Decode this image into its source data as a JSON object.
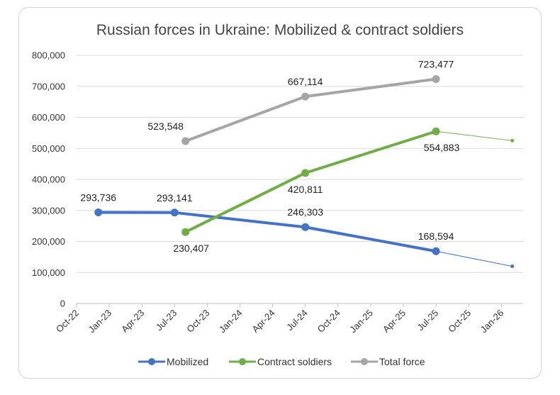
{
  "chart_data": {
    "type": "line",
    "title": "Russian forces in Ukraine: Mobilized & contract soldiers",
    "xlabel": "",
    "ylabel": "",
    "x_ticks": [
      "Oct-22",
      "Jan-23",
      "Apr-23",
      "Jul-23",
      "Oct-23",
      "Jan-24",
      "Apr-24",
      "Jul-24",
      "Oct-24",
      "Jan-25",
      "Apr-25",
      "Jul-25",
      "Oct-25",
      "Jan-26"
    ],
    "y_ticks": [
      "0",
      "100,000",
      "200,000",
      "300,000",
      "400,000",
      "500,000",
      "600,000",
      "700,000",
      "800,000"
    ],
    "ylim": [
      0,
      800000
    ],
    "grid": "horizontal",
    "legend_position": "bottom",
    "series": [
      {
        "name": "Mobilized",
        "color": "#4472c4",
        "points": [
          {
            "x": "2022-12",
            "y": 293736,
            "label": "293,736"
          },
          {
            "x": "2023-07",
            "y": 293141,
            "label": "293,141"
          },
          {
            "x": "2024-07",
            "y": 246303,
            "label": "246,303"
          },
          {
            "x": "2025-07",
            "y": 168594,
            "label": "168,594"
          }
        ],
        "trend": {
          "x": "2026-02",
          "y": 120000
        }
      },
      {
        "name": "Contract soldiers",
        "color": "#70ad47",
        "points": [
          {
            "x": "2023-08",
            "y": 230407,
            "label": "230,407"
          },
          {
            "x": "2024-07",
            "y": 420811,
            "label": "420,811"
          },
          {
            "x": "2025-07",
            "y": 554883,
            "label": "554,883"
          }
        ],
        "trend": {
          "x": "2026-02",
          "y": 525000
        }
      },
      {
        "name": "Total force",
        "color": "#a5a5a5",
        "points": [
          {
            "x": "2023-08",
            "y": 523548,
            "label": "523,548"
          },
          {
            "x": "2024-07",
            "y": 667114,
            "label": "667,114"
          },
          {
            "x": "2025-07",
            "y": 723477,
            "label": "723,477"
          }
        ]
      }
    ]
  }
}
